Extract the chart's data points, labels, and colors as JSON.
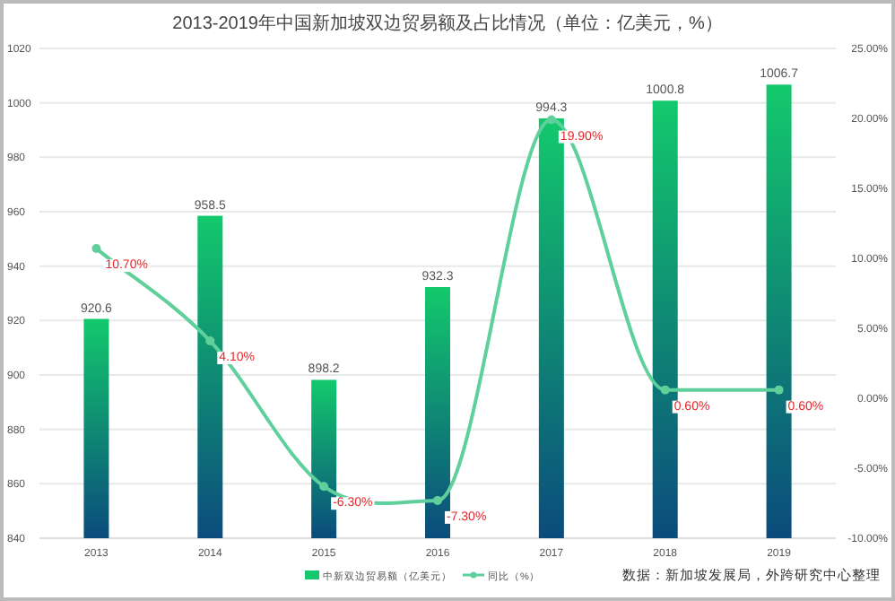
{
  "chart_data": {
    "type": "bar",
    "title": "2013-2019年中国新加坡双边贸易额及占比情况（单位：亿美元，%）",
    "categories": [
      "2013",
      "2014",
      "2015",
      "2016",
      "2017",
      "2018",
      "2019"
    ],
    "series": [
      {
        "name": "中新双边贸易额（亿美元）",
        "color": "#13c96c",
        "values": [
          920.6,
          958.5,
          898.2,
          932.3,
          994.3,
          1000.8,
          1006.7
        ],
        "value_labels": [
          "920.6",
          "958.5",
          "898.2",
          "932.3",
          "994.3",
          "1000.8",
          "1006.7"
        ]
      },
      {
        "name": "同比（%）",
        "type": "line",
        "axis": "y2",
        "color": "#5fd09c",
        "marker": "circle",
        "values": [
          10.7,
          4.1,
          -6.3,
          -7.3,
          19.9,
          0.6,
          0.6
        ],
        "value_labels": [
          "10.70%",
          "4.10%",
          "-6.30%",
          "-7.30%",
          "19.90%",
          "0.60%",
          "0.60%"
        ]
      }
    ],
    "ylim": [
      840,
      1020
    ],
    "yticks": [
      840,
      860,
      880,
      900,
      920,
      940,
      960,
      980,
      1000,
      1020
    ],
    "y2lim": [
      -10,
      25
    ],
    "y2ticks": [
      {
        "value": -10,
        "label": "-10.00%"
      },
      {
        "value": -5,
        "label": "-5.00%"
      },
      {
        "value": 0,
        "label": "0.00%"
      },
      {
        "value": 5,
        "label": "5.00%"
      },
      {
        "value": 10,
        "label": "10.00%"
      },
      {
        "value": 15,
        "label": "15.00%"
      },
      {
        "value": 20,
        "label": "20.00%"
      },
      {
        "value": 25,
        "label": "25.00%"
      }
    ],
    "grid": "y",
    "legend": "bottom",
    "annotations": [
      "数据：新加坡发展局，外跨研究中心整理"
    ]
  }
}
